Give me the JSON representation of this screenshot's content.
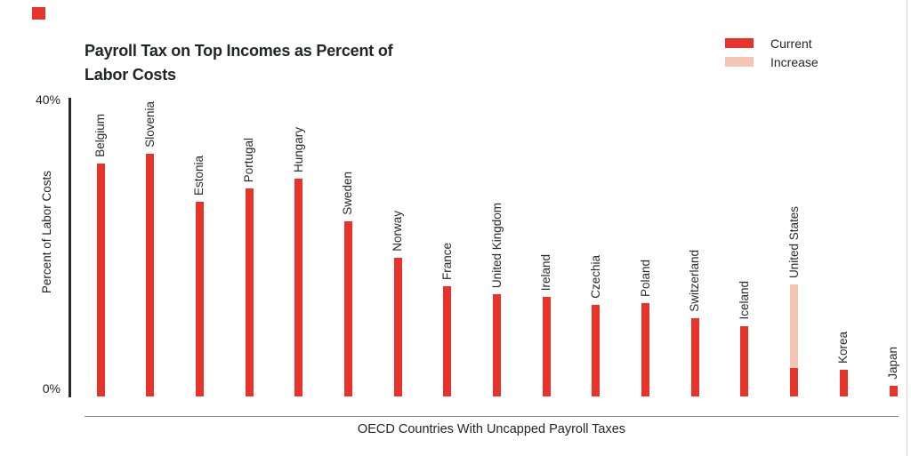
{
  "page": {
    "background": "#ffffff",
    "brand_color": "#e73329"
  },
  "chart_data": {
    "type": "bar",
    "stacked": true,
    "title": "Payroll Tax on Top Incomes as Percent of Labor Costs",
    "xlabel": "OECD Countries With Uncapped Payroll Taxes",
    "ylabel": "Percent of Labor Costs",
    "ylim": [
      0,
      40
    ],
    "y_axis": {
      "max_label": "40%",
      "min_label": "0%"
    },
    "grid": false,
    "legend_position": "top-right",
    "categories": [
      "Belgium",
      "Slovenia",
      "Estonia",
      "Portugal",
      "Hungary",
      "Sweden",
      "Norway",
      "France",
      "United Kingdom",
      "Ireland",
      "Czechia",
      "Poland",
      "Switzerland",
      "Iceland",
      "United States",
      "Korea",
      "Japan"
    ],
    "series": [
      {
        "name": "Current",
        "color": "#e73329",
        "values": [
          31.2,
          32.5,
          26.1,
          27.9,
          29.2,
          23.5,
          18.6,
          14.8,
          13.7,
          13.3,
          12.3,
          12.5,
          10.5,
          9.4,
          3.8,
          3.6,
          1.4
        ]
      },
      {
        "name": "Increase",
        "color": "#f5c6b5",
        "values": [
          0,
          0,
          0,
          0,
          0,
          0,
          0,
          0,
          0,
          0,
          0,
          0,
          0,
          0,
          11.2,
          0,
          0
        ]
      }
    ]
  }
}
